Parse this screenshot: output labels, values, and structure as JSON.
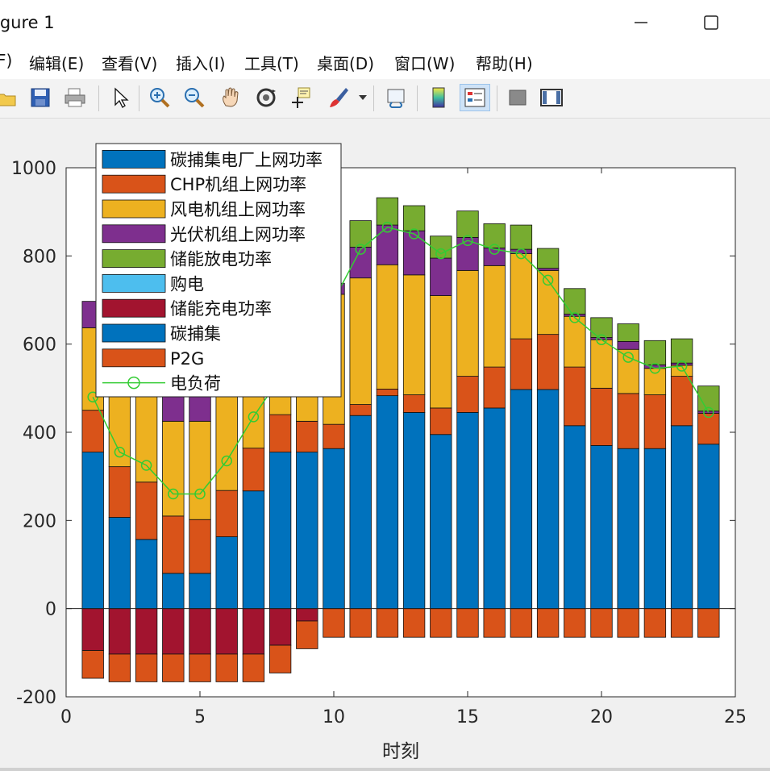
{
  "window": {
    "title": "igure 1"
  },
  "menu": [
    "F)",
    "编辑(E)",
    "查看(V)",
    "插入(I)",
    "工具(T)",
    "桌面(D)",
    "窗口(W)",
    "帮助(H)"
  ],
  "toolbar": {
    "icons": [
      "open-icon",
      "save-icon",
      "print-icon",
      "pointer-icon",
      "zoom-in-icon",
      "zoom-out-icon",
      "pan-hand-icon",
      "rotate-3d-icon",
      "data-cursor-icon",
      "brush-icon",
      "brush-dropdown-icon",
      "link-plot-icon",
      "colorbar-icon",
      "legend-icon",
      "hide-plot-tools-icon",
      "show-plot-tools-icon"
    ]
  },
  "chart_data": {
    "type": "bar",
    "stacked": true,
    "xlabel": "时刻",
    "ylabel": "",
    "xlim": [
      0,
      25
    ],
    "ylim": [
      -200,
      1000
    ],
    "xticks": [
      "0",
      "5",
      "10",
      "15",
      "20",
      "25"
    ],
    "yticks": [
      "-200",
      "0",
      "200",
      "400",
      "600",
      "800",
      "1000"
    ],
    "x": [
      1,
      2,
      3,
      4,
      5,
      6,
      7,
      8,
      9,
      10,
      11,
      12,
      13,
      14,
      15,
      16,
      17,
      18,
      19,
      20,
      21,
      22,
      23,
      24
    ],
    "grid": false,
    "legend_position": "top-left",
    "series": [
      {
        "name": "碳捕集电厂上网功率",
        "color": "#0072BD",
        "group": "positive",
        "values": [
          355,
          207,
          157,
          80,
          80,
          163,
          267,
          355,
          355,
          363,
          438,
          483,
          445,
          395,
          445,
          455,
          497,
          497,
          415,
          370,
          363,
          363,
          415,
          373
        ]
      },
      {
        "name": "CHP机组上网功率",
        "color": "#D95319",
        "group": "positive",
        "values": [
          95,
          115,
          130,
          130,
          122,
          105,
          97,
          85,
          70,
          55,
          25,
          15,
          40,
          60,
          82,
          93,
          115,
          125,
          133,
          130,
          125,
          122,
          112,
          70
        ]
      },
      {
        "name": "风电机组上网功率",
        "color": "#EDB120",
        "group": "positive",
        "values": [
          187,
          193,
          202,
          215,
          223,
          225,
          228,
          230,
          230,
          295,
          287,
          282,
          272,
          255,
          240,
          230,
          193,
          145,
          115,
          110,
          100,
          60,
          25,
          0
        ]
      },
      {
        "name": "光伏机组上网功率",
        "color": "#7E2F8E",
        "group": "positive",
        "values": [
          60,
          0,
          0,
          60,
          60,
          0,
          0,
          0,
          0,
          25,
          70,
          90,
          100,
          85,
          75,
          40,
          10,
          5,
          5,
          5,
          18,
          8,
          5,
          5
        ]
      },
      {
        "name": "储能放电功率",
        "color": "#77AC30",
        "group": "positive",
        "values": [
          0,
          0,
          0,
          0,
          0,
          0,
          0,
          0,
          0,
          0,
          60,
          62,
          57,
          50,
          60,
          55,
          55,
          45,
          58,
          45,
          40,
          55,
          55,
          57
        ]
      },
      {
        "name": "购电",
        "color": "#4DBEEE",
        "group": "positive",
        "values": [
          0,
          0,
          0,
          0,
          0,
          0,
          0,
          0,
          0,
          0,
          0,
          0,
          0,
          0,
          0,
          0,
          0,
          0,
          0,
          0,
          0,
          0,
          0,
          0
        ]
      },
      {
        "name": "储能充电功率",
        "color": "#A2142F",
        "group": "negative",
        "values": [
          -95,
          -103,
          -103,
          -103,
          -103,
          -103,
          -103,
          -83,
          -28,
          0,
          0,
          0,
          0,
          0,
          0,
          0,
          0,
          0,
          0,
          0,
          0,
          0,
          0,
          0
        ]
      },
      {
        "name": "碳捕集",
        "color": "#0072BD",
        "group": "negative",
        "values": [
          0,
          0,
          0,
          0,
          0,
          0,
          0,
          0,
          0,
          0,
          0,
          0,
          0,
          0,
          0,
          0,
          0,
          0,
          0,
          0,
          0,
          0,
          0,
          0
        ]
      },
      {
        "name": "P2G",
        "color": "#D95319",
        "group": "negative",
        "values": [
          -63,
          -63,
          -63,
          -63,
          -63,
          -63,
          -63,
          -63,
          -63,
          -65,
          -65,
          -65,
          -65,
          -65,
          -65,
          -65,
          -65,
          -65,
          -65,
          -65,
          -65,
          -65,
          -65,
          -65
        ]
      }
    ],
    "line": {
      "name": "电负荷",
      "color": "#33CC33",
      "values": [
        480,
        355,
        325,
        260,
        260,
        335,
        435,
        525,
        605,
        700,
        815,
        865,
        850,
        805,
        835,
        815,
        805,
        745,
        660,
        610,
        570,
        545,
        550,
        445
      ]
    },
    "legend": [
      "碳捕集电厂上网功率",
      "CHP机组上网功率",
      "风电机组上网功率",
      "光伏机组上网功率",
      "储能放电功率",
      "购电",
      "储能充电功率",
      "碳捕集",
      "P2G",
      "电负荷"
    ]
  }
}
